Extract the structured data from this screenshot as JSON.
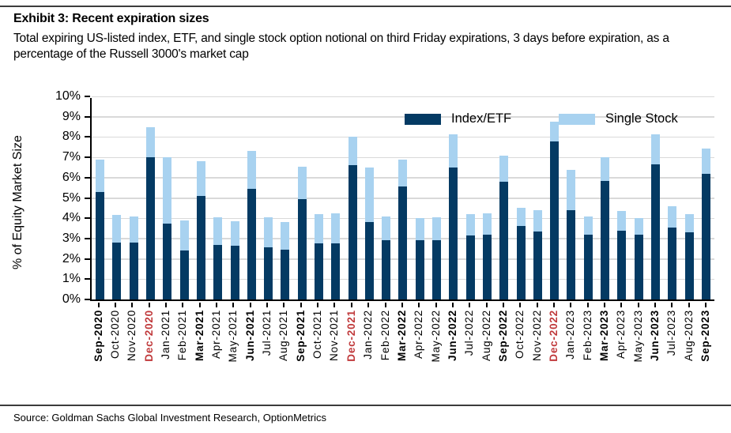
{
  "exhibit": {
    "title": "Exhibit 3: Recent expiration sizes",
    "subtitle": "Total expiring US-listed index, ETF, and single stock option notional on third Friday expirations, 3 days before expiration, as a percentage of the Russell 3000's market cap"
  },
  "source": "Source: Goldman Sachs Global Investment Research, OptionMetrics",
  "colors": {
    "index_etf": "#043a63",
    "single_stock": "#a8d2f0",
    "gridline": "#d9d9d9",
    "axis": "#000000",
    "december_label": "#c0393b",
    "rule": "#3c3c3c"
  },
  "chart_data": {
    "type": "bar",
    "stacked": true,
    "title": "",
    "xlabel": "",
    "ylabel": "% of Equity Market Size",
    "ylim": [
      0,
      10
    ],
    "yticks": [
      "0%",
      "1%",
      "2%",
      "3%",
      "4%",
      "5%",
      "6%",
      "7%",
      "8%",
      "9%",
      "10%"
    ],
    "grid": true,
    "legend_position": "top-inside",
    "categories": [
      "Sep-2020",
      "Oct-2020",
      "Nov-2020",
      "Dec-2020",
      "Jan-2021",
      "Feb-2021",
      "Mar-2021",
      "Apr-2021",
      "May-2021",
      "Jun-2021",
      "Jul-2021",
      "Aug-2021",
      "Sep-2021",
      "Oct-2021",
      "Nov-2021",
      "Dec-2021",
      "Jan-2022",
      "Feb-2022",
      "Mar-2022",
      "Apr-2022",
      "May-2022",
      "Jun-2022",
      "Jul-2022",
      "Aug-2022",
      "Sep-2022",
      "Oct-2022",
      "Nov-2022",
      "Dec-2022",
      "Jan-2023",
      "Feb-2023",
      "Mar-2023",
      "Apr-2023",
      "May-2023",
      "Jun-2023",
      "Jul-2023",
      "Aug-2023",
      "Sep-2023"
    ],
    "bold_categories": [
      "Sep-2020",
      "Dec-2020",
      "Mar-2021",
      "Jun-2021",
      "Sep-2021",
      "Dec-2021",
      "Mar-2022",
      "Jun-2022",
      "Sep-2022",
      "Dec-2022",
      "Mar-2023",
      "Jun-2023",
      "Sep-2023"
    ],
    "red_categories": [
      "Dec-2020",
      "Dec-2021",
      "Dec-2022"
    ],
    "series": [
      {
        "name": "Index/ETF",
        "color": "#043a63",
        "values": [
          5.3,
          2.8,
          2.8,
          7.0,
          3.75,
          2.4,
          5.1,
          2.7,
          2.65,
          5.45,
          2.55,
          2.45,
          4.95,
          2.75,
          2.75,
          6.6,
          3.8,
          2.9,
          5.55,
          2.9,
          2.9,
          6.5,
          3.15,
          3.2,
          5.8,
          3.6,
          3.35,
          7.8,
          4.4,
          3.2,
          5.85,
          3.4,
          3.2,
          6.65,
          3.55,
          3.3,
          6.2
        ]
      },
      {
        "name": "Single Stock",
        "color": "#a8d2f0",
        "values": [
          1.6,
          1.35,
          1.3,
          1.5,
          3.25,
          1.5,
          1.7,
          1.35,
          1.2,
          1.85,
          1.5,
          1.35,
          1.6,
          1.45,
          1.5,
          1.4,
          2.7,
          1.2,
          1.35,
          1.1,
          1.15,
          1.65,
          1.05,
          1.05,
          1.3,
          0.9,
          1.05,
          0.95,
          2.0,
          0.9,
          1.15,
          0.95,
          0.8,
          1.5,
          1.05,
          0.9,
          1.25
        ]
      }
    ]
  }
}
